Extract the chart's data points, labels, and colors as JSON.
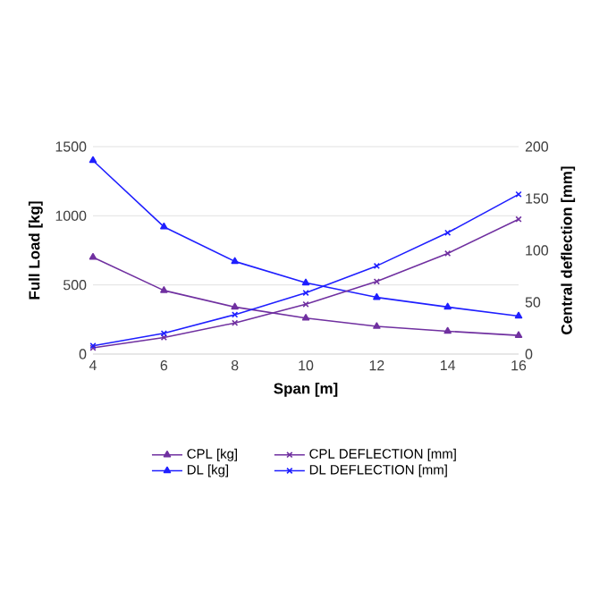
{
  "chart_data": {
    "type": "line",
    "xlabel": "Span [m]",
    "ylabel": "Full Load [kg]",
    "y2label": "Central deflection [mm]",
    "x": [
      4,
      6,
      8,
      10,
      12,
      14,
      16
    ],
    "series": [
      {
        "name": "CPL [kg]",
        "color": "#7030a0",
        "marker": "triangle",
        "values": [
          700,
          460,
          340,
          260,
          200,
          165,
          135
        ]
      },
      {
        "name": "DL [kg]",
        "color": "#1f1fff",
        "marker": "triangle",
        "values": [
          1400,
          920,
          670,
          515,
          410,
          340,
          275
        ]
      },
      {
        "name": "CPL DEFLECTION [mm]",
        "color": "#7030a0",
        "marker": "cross",
        "axis": "y2",
        "values": [
          6,
          16,
          30,
          48,
          70,
          97,
          130
        ]
      },
      {
        "name": "DL DEFLECTION [mm]",
        "color": "#1f1fff",
        "marker": "cross",
        "axis": "y2",
        "values": [
          8,
          20,
          38,
          59,
          85,
          117,
          154
        ]
      }
    ],
    "xlim": [
      4,
      16
    ],
    "xticks": [
      4,
      6,
      8,
      10,
      12,
      14,
      16
    ],
    "ylim": [
      0,
      1500
    ],
    "yticks": [
      0,
      500,
      1000,
      1500
    ],
    "y2lim": [
      0,
      200
    ],
    "y2ticks": [
      0,
      50,
      100,
      150,
      200
    ],
    "grid": "y",
    "legend": "bottom"
  }
}
